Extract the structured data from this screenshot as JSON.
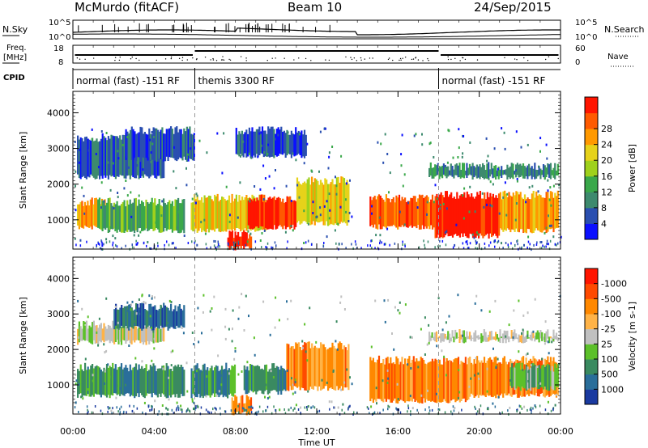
{
  "header": {
    "station": "McMurdo (fitACF)",
    "beam": "Beam 10",
    "date": "24/Sep/2015"
  },
  "sky_panel": {
    "left_label": "N.Sky",
    "left_ticks": [
      "10^5",
      "10^0"
    ],
    "right_label": "N.Search",
    "right_ticks": [
      "10^5",
      "10^0"
    ]
  },
  "freq_panel": {
    "left_label_line1": "Freq.",
    "left_label_line2": "[MHz]",
    "left_ticks": [
      "18",
      "8"
    ],
    "right_label": "Nave",
    "right_ticks": [
      "60",
      "0"
    ]
  },
  "cpid_panel": {
    "label": "CPID",
    "segments": [
      {
        "label": "normal (fast) -151 RF",
        "start_h": 0,
        "end_h": 6.0
      },
      {
        "label": "themis 3300 RF",
        "start_h": 6.0,
        "end_h": 18.0
      },
      {
        "label": "normal (fast) -151 RF",
        "start_h": 18.0,
        "end_h": 24.0
      }
    ]
  },
  "chart_data": [
    {
      "type": "heatmap",
      "title": "Power",
      "xlabel": "Time UT",
      "ylabel": "Slant Range [km]",
      "xlim": [
        0,
        24
      ],
      "ylim": [
        180,
        4600
      ],
      "x_ticks": [
        "00:00",
        "04:00",
        "08:00",
        "12:00",
        "16:00",
        "20:00",
        "00:00"
      ],
      "y_ticks": [
        1000,
        2000,
        3000,
        4000
      ],
      "colorbar": {
        "label": "Power [dB]",
        "ticks": [
          4,
          8,
          12,
          16,
          20,
          24,
          28
        ],
        "colors": [
          "#0b10ff",
          "#2a4fb0",
          "#3d8a6e",
          "#3aa84a",
          "#9fd11c",
          "#e6d21a",
          "#ff9900",
          "#ff5a00",
          "#ff1500"
        ]
      },
      "bands": [
        {
          "t0": 0.2,
          "t1": 1.6,
          "r0": 800,
          "r1": 1500,
          "level": 6
        },
        {
          "t0": 1.2,
          "t1": 5.5,
          "r0": 700,
          "r1": 1500,
          "level": 3
        },
        {
          "t0": 5.8,
          "t1": 9.5,
          "r0": 700,
          "r1": 1600,
          "level": 5
        },
        {
          "t0": 7.6,
          "t1": 8.8,
          "r0": 200,
          "r1": 600,
          "level": 8
        },
        {
          "t0": 8.6,
          "t1": 11.0,
          "r0": 800,
          "r1": 1600,
          "level": 8
        },
        {
          "t0": 11.0,
          "t1": 13.6,
          "r0": 900,
          "r1": 2100,
          "level": 5
        },
        {
          "t0": 14.6,
          "t1": 17.8,
          "r0": 800,
          "r1": 1600,
          "level": 7
        },
        {
          "t0": 17.8,
          "t1": 21.0,
          "r0": 550,
          "r1": 1700,
          "level": 8
        },
        {
          "t0": 21.0,
          "t1": 23.9,
          "r0": 700,
          "r1": 1700,
          "level": 6
        },
        {
          "t0": 0.2,
          "t1": 4.5,
          "r0": 2200,
          "r1": 3300,
          "level": 1
        },
        {
          "t0": 2.5,
          "t1": 6.0,
          "r0": 2700,
          "r1": 3500,
          "level": 1
        },
        {
          "t0": 8.0,
          "t1": 11.5,
          "r0": 2800,
          "r1": 3500,
          "level": 1
        },
        {
          "t0": 17.5,
          "t1": 23.9,
          "r0": 2200,
          "r1": 2500,
          "level": 2
        }
      ]
    },
    {
      "type": "heatmap",
      "title": "Velocity",
      "xlabel": "Time UT",
      "ylabel": "Slant Range [km]",
      "xlim": [
        0,
        24
      ],
      "ylim": [
        180,
        4600
      ],
      "x_ticks": [
        "00:00",
        "04:00",
        "08:00",
        "12:00",
        "16:00",
        "20:00",
        "00:00"
      ],
      "y_ticks": [
        1000,
        2000,
        3000,
        4000
      ],
      "colorbar": {
        "label": "Velocity [m s-1]",
        "ticks": [
          "1000",
          "500",
          "100",
          "25",
          "-25",
          "-100",
          "-500",
          "-1000"
        ],
        "colors": [
          "#1a3aa0",
          "#2a6e9a",
          "#3a8a60",
          "#5cc02a",
          "#c0c0c0",
          "#ffb347",
          "#ff8800",
          "#ff4a00",
          "#ff1500"
        ]
      },
      "bands": [
        {
          "t0": 0.2,
          "t1": 5.5,
          "r0": 700,
          "r1": 1500,
          "level": 2
        },
        {
          "t0": 5.8,
          "t1": 8.0,
          "r0": 700,
          "r1": 1500,
          "level": 2
        },
        {
          "t0": 7.8,
          "t1": 8.8,
          "r0": 200,
          "r1": 600,
          "level": 6
        },
        {
          "t0": 8.4,
          "t1": 10.5,
          "r0": 800,
          "r1": 1500,
          "level": 2
        },
        {
          "t0": 10.5,
          "t1": 13.6,
          "r0": 900,
          "r1": 2100,
          "level": 6
        },
        {
          "t0": 14.6,
          "t1": 19.5,
          "r0": 550,
          "r1": 1700,
          "level": 6
        },
        {
          "t0": 19.5,
          "t1": 23.9,
          "r0": 700,
          "r1": 1700,
          "level": 6
        },
        {
          "t0": 21.5,
          "t1": 23.9,
          "r0": 900,
          "r1": 1500,
          "level": 3
        },
        {
          "t0": 0.2,
          "t1": 4.5,
          "r0": 2200,
          "r1": 2700,
          "level": 4
        },
        {
          "t0": 2.0,
          "t1": 5.5,
          "r0": 2600,
          "r1": 3200,
          "level": 1
        },
        {
          "t0": 17.5,
          "t1": 23.9,
          "r0": 2250,
          "r1": 2450,
          "level": 4
        }
      ]
    }
  ]
}
